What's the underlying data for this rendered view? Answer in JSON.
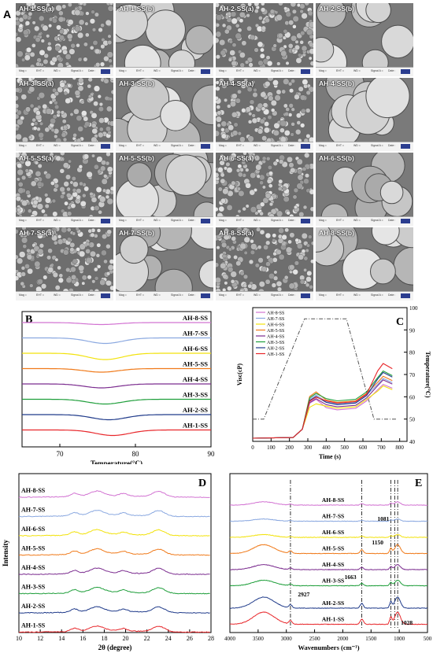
{
  "panel_labels": {
    "a": "A",
    "b": "B",
    "c": "C",
    "d": "D",
    "e": "E"
  },
  "sem_tiles": [
    "AH-1-SS(a)",
    "AH-1-SS(b)",
    "AH-2-SS(a)",
    "AH-2-SS(b)",
    "AH-3-SS(a)",
    "AH-3-SS(b)",
    "AH-4-SS(a)",
    "AH-4-SS(b)",
    "AH-5-SS(a)",
    "AH-5-SS(b)",
    "AH-6-SS(a)",
    "AH-6-SS(b)",
    "AH-7-SS(a)",
    "AH-7-SS(b)",
    "AH-8-SS(a)",
    "AH-8-SS(b)"
  ],
  "sem_scale_row": [
    "Mag =",
    "EHT =",
    "WD =",
    "Signal A =",
    "Date :"
  ],
  "colors": {
    "AH-1-SS": "#e8262a",
    "AH-2-SS": "#1f3a8a",
    "AH-3-SS": "#1e9e3a",
    "AH-4-SS": "#7b2c8f",
    "AH-5-SS": "#f07a1a",
    "AH-6-SS": "#f2e20a",
    "AH-7-SS": "#8aa8e0",
    "AH-8-SS": "#d273d2"
  },
  "chart_data": [
    {
      "panel": "B",
      "type": "line",
      "xlabel": "Temperature(°C)",
      "ylabel": "",
      "xlim": [
        65,
        90
      ],
      "x_ticks": [
        "70",
        "80",
        "90"
      ],
      "series": [
        {
          "name": "AH-8-SS",
          "peak_x": 75.5,
          "depth": 0.25
        },
        {
          "name": "AH-7-SS",
          "peak_x": 76.0,
          "depth": 0.7
        },
        {
          "name": "AH-6-SS",
          "peak_x": 76.0,
          "depth": 0.8
        },
        {
          "name": "AH-5-SS",
          "peak_x": 75.5,
          "depth": 0.45
        },
        {
          "name": "AH-4-SS",
          "peak_x": 75.5,
          "depth": 0.5
        },
        {
          "name": "AH-3-SS",
          "peak_x": 76.0,
          "depth": 0.6
        },
        {
          "name": "AH-2-SS",
          "peak_x": 76.5,
          "depth": 0.65
        },
        {
          "name": "AH-1-SS",
          "peak_x": 77.0,
          "depth": 0.7
        }
      ]
    },
    {
      "panel": "C",
      "type": "line",
      "xlabel": "Time (s)",
      "ylabel": "Visc(cP)",
      "ylabel_right": "Temperature(°C)",
      "xlim": [
        0,
        840
      ],
      "x_ticks": [
        "0",
        "100",
        "200",
        "300",
        "400",
        "500",
        "600",
        "700",
        "800"
      ],
      "y_right_ticks": [
        "40",
        "50",
        "60",
        "70",
        "80",
        "90",
        "100"
      ],
      "y_right_lim": [
        40,
        100
      ],
      "temperature_profile": {
        "x": [
          0,
          60,
          282,
          510,
          660,
          780
        ],
        "y": [
          50,
          50,
          95,
          95,
          50,
          50
        ]
      },
      "series": [
        {
          "name": "AH-8-SS",
          "peak": 0.52,
          "trough": 0.38,
          "final": 0.72
        },
        {
          "name": "AH-7-SS",
          "peak": 0.58,
          "trough": 0.46,
          "final": 0.8
        },
        {
          "name": "AH-6-SS",
          "peak": 0.46,
          "trough": 0.4,
          "final": 0.7
        },
        {
          "name": "AH-5-SS",
          "peak": 0.62,
          "trough": 0.48,
          "final": 0.83
        },
        {
          "name": "AH-4-SS",
          "peak": 0.53,
          "trough": 0.42,
          "final": 0.78
        },
        {
          "name": "AH-3-SS",
          "peak": 0.6,
          "trough": 0.5,
          "final": 0.9
        },
        {
          "name": "AH-2-SS",
          "peak": 0.56,
          "trough": 0.45,
          "final": 0.88
        },
        {
          "name": "AH-1-SS",
          "peak": 0.55,
          "trough": 0.47,
          "final": 1.0
        }
      ]
    },
    {
      "panel": "D",
      "type": "line",
      "xlabel": "2θ (degree)",
      "ylabel": "Intensity",
      "xlim": [
        10,
        28
      ],
      "x_ticks": [
        "10",
        "12",
        "14",
        "16",
        "18",
        "20",
        "22",
        "24",
        "26",
        "28"
      ],
      "peaks_2theta": [
        15.2,
        17.1,
        18.0,
        23.1
      ],
      "series": [
        {
          "name": "AH-8-SS"
        },
        {
          "name": "AH-7-SS"
        },
        {
          "name": "AH-6-SS"
        },
        {
          "name": "AH-5-SS"
        },
        {
          "name": "AH-4-SS"
        },
        {
          "name": "AH-3-SS"
        },
        {
          "name": "AH-2-SS"
        },
        {
          "name": "AH-1-SS"
        }
      ]
    },
    {
      "panel": "E",
      "type": "line",
      "xlabel": "Wavenumbers (cm⁻¹)",
      "ylabel": "",
      "xlim": [
        4000,
        500
      ],
      "x_ticks": [
        "4000",
        "3500",
        "3000",
        "2500",
        "2000",
        "1500",
        "1000",
        "500"
      ],
      "annotations": [
        {
          "text": "2927",
          "x": 2927
        },
        {
          "text": "1663",
          "x": 1663
        },
        {
          "text": "1150",
          "x": 1150
        },
        {
          "text": "1081",
          "x": 1081
        },
        {
          "text": "1028",
          "x": 1028
        }
      ],
      "dashed_lines_x": [
        2927,
        1663,
        1150,
        1081,
        1028
      ],
      "series": [
        {
          "name": "AH-8-SS"
        },
        {
          "name": "AH-7-SS"
        },
        {
          "name": "AH-6-SS"
        },
        {
          "name": "AH-5-SS"
        },
        {
          "name": "AH-4-SS"
        },
        {
          "name": "AH-3-SS"
        },
        {
          "name": "AH-2-SS"
        },
        {
          "name": "AH-1-SS"
        }
      ]
    }
  ]
}
